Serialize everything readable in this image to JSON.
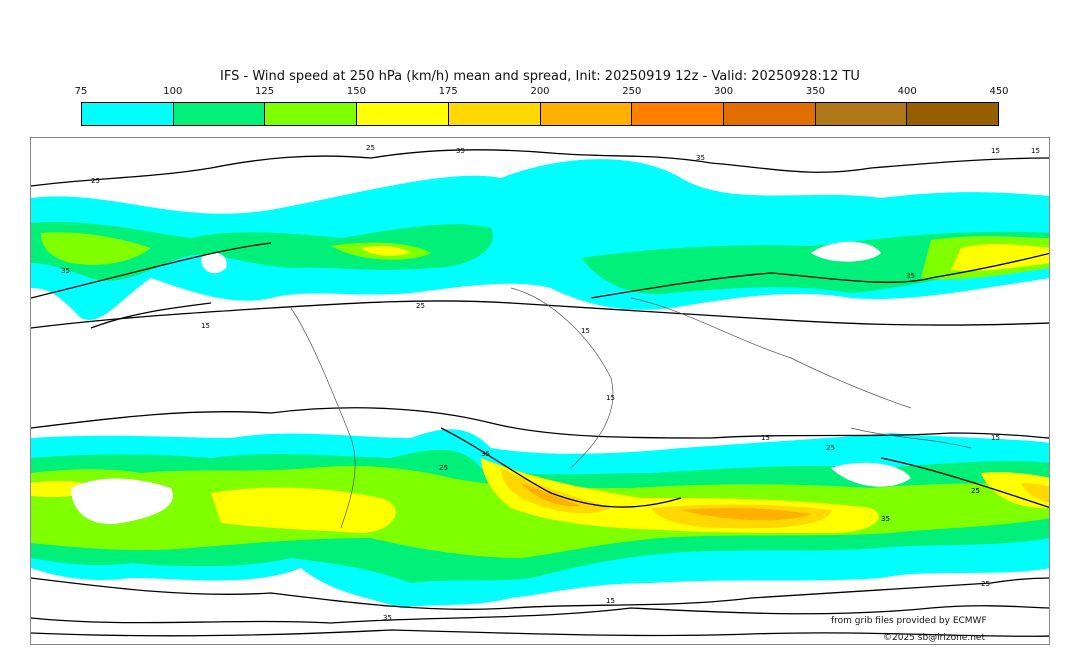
{
  "title": "IFS - Wind speed at 250 hPa (km/h) mean and spread, Init: 20250919 12z - Valid: 20250928:12 TU",
  "colorbar": {
    "ticks": [
      "75",
      "100",
      "125",
      "150",
      "175",
      "200",
      "250",
      "300",
      "350",
      "400",
      "450"
    ],
    "colors": [
      "#00ffff",
      "#00f07a",
      "#80ff00",
      "#ffff00",
      "#ffd800",
      "#ffb000",
      "#ff8000",
      "#e06e00",
      "#b07818",
      "#966000"
    ]
  },
  "contour_labels": [
    "35",
    "35",
    "25",
    "25",
    "15",
    "15",
    "15",
    "25",
    "15",
    "35",
    "35",
    "15",
    "15",
    "25",
    "25",
    "15",
    "35",
    "25",
    "25",
    "35",
    "15",
    "35"
  ],
  "credits": {
    "source": "from grib files provided by ECMWF",
    "copyright": "©2025 sb@irizone.net"
  }
}
